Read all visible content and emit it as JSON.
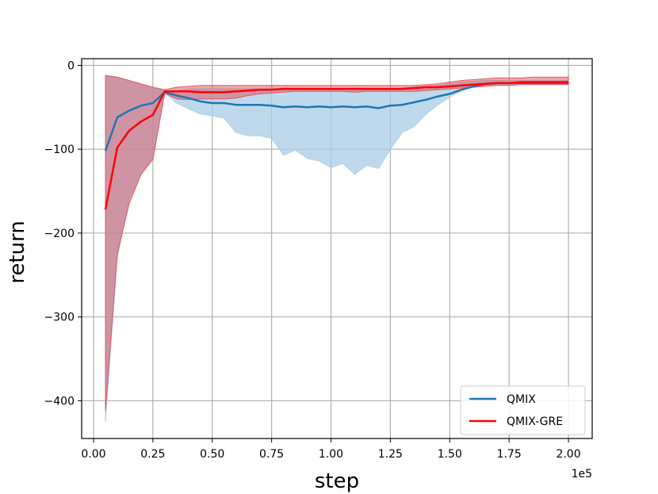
{
  "chart_data": {
    "type": "line",
    "xlabel": "step",
    "ylabel": "return",
    "x_offset_label": "1e5",
    "xlim": [
      -0.05,
      2.1
    ],
    "ylim": [
      -445,
      8
    ],
    "xticks": [
      0.0,
      0.25,
      0.5,
      0.75,
      1.0,
      1.25,
      1.5,
      1.75,
      2.0
    ],
    "xtick_labels": [
      "0.00",
      "0.25",
      "0.50",
      "0.75",
      "1.00",
      "1.25",
      "1.50",
      "1.75",
      "2.00"
    ],
    "yticks": [
      0,
      -100,
      -200,
      -300,
      -400
    ],
    "ytick_labels": [
      "0",
      "−100",
      "−200",
      "−300",
      "−400"
    ],
    "grid": true,
    "legend_position": "lower-right",
    "series": [
      {
        "name": "QMIX",
        "color": "#1f77b4",
        "band_color": "#a9cce5",
        "x": [
          0.05,
          0.1,
          0.15,
          0.2,
          0.25,
          0.3,
          0.35,
          0.4,
          0.45,
          0.5,
          0.55,
          0.6,
          0.65,
          0.7,
          0.75,
          0.8,
          0.85,
          0.9,
          0.95,
          1.0,
          1.05,
          1.1,
          1.15,
          1.2,
          1.25,
          1.3,
          1.35,
          1.4,
          1.45,
          1.5,
          1.55,
          1.6,
          1.65,
          1.7,
          1.75,
          1.8,
          1.85,
          1.9,
          1.95,
          2.0
        ],
        "mean": [
          -102,
          -62,
          -54,
          -48,
          -45,
          -32,
          -36,
          -39,
          -43,
          -45,
          -45,
          -47,
          -47,
          -47,
          -48,
          -50,
          -49,
          -50,
          -49,
          -50,
          -49,
          -50,
          -49,
          -51,
          -48,
          -47,
          -44,
          -41,
          -37,
          -34,
          -29,
          -25,
          -22,
          -21,
          -21,
          -21,
          -21,
          -21,
          -21,
          -21
        ],
        "upper": [
          -13,
          -14,
          -18,
          -22,
          -27,
          -30,
          -30,
          -28,
          -28,
          -28,
          -28,
          -28,
          -28,
          -28,
          -28,
          -28,
          -28,
          -28,
          -28,
          -28,
          -28,
          -28,
          -28,
          -28,
          -28,
          -27,
          -26,
          -25,
          -24,
          -22,
          -20,
          -19,
          -18,
          -18,
          -18,
          -18,
          -18,
          -18,
          -18,
          -18
        ],
        "lower": [
          -425,
          -230,
          -160,
          -130,
          -110,
          -33,
          -45,
          -52,
          -58,
          -60,
          -63,
          -80,
          -84,
          -84,
          -87,
          -107,
          -101,
          -111,
          -114,
          -122,
          -117,
          -130,
          -119,
          -123,
          -100,
          -80,
          -73,
          -58,
          -47,
          -38,
          -30,
          -26,
          -24,
          -23,
          -23,
          -23,
          -23,
          -23,
          -23,
          -23
        ]
      },
      {
        "name": "QMIX-GRE",
        "color": "#ff0000",
        "band_color": "#e0505a",
        "x": [
          0.05,
          0.1,
          0.15,
          0.2,
          0.25,
          0.3,
          0.35,
          0.4,
          0.45,
          0.5,
          0.55,
          0.6,
          0.65,
          0.7,
          0.75,
          0.8,
          0.85,
          0.9,
          0.95,
          1.0,
          1.05,
          1.1,
          1.15,
          1.2,
          1.25,
          1.3,
          1.35,
          1.4,
          1.45,
          1.5,
          1.55,
          1.6,
          1.65,
          1.7,
          1.75,
          1.8,
          1.85,
          1.9,
          1.95,
          2.0
        ],
        "mean": [
          -172,
          -98,
          -78,
          -67,
          -59,
          -31,
          -31,
          -31,
          -32,
          -32,
          -32,
          -31,
          -30,
          -29,
          -29,
          -28,
          -28,
          -28,
          -28,
          -28,
          -28,
          -28,
          -28,
          -28,
          -28,
          -28,
          -27,
          -26,
          -26,
          -25,
          -24,
          -23,
          -22,
          -21,
          -21,
          -20,
          -20,
          -20,
          -20,
          -20
        ],
        "upper": [
          -12,
          -14,
          -18,
          -22,
          -26,
          -29,
          -26,
          -25,
          -24,
          -24,
          -24,
          -24,
          -24,
          -24,
          -24,
          -24,
          -24,
          -24,
          -24,
          -24,
          -24,
          -24,
          -24,
          -24,
          -24,
          -24,
          -24,
          -23,
          -22,
          -20,
          -18,
          -17,
          -16,
          -15,
          -15,
          -15,
          -14,
          -14,
          -14,
          -14
        ],
        "lower": [
          -412,
          -225,
          -165,
          -130,
          -112,
          -33,
          -40,
          -41,
          -40,
          -40,
          -40,
          -39,
          -36,
          -34,
          -33,
          -32,
          -31,
          -31,
          -31,
          -31,
          -31,
          -32,
          -31,
          -31,
          -31,
          -31,
          -31,
          -30,
          -29,
          -28,
          -27,
          -26,
          -25,
          -24,
          -24,
          -23,
          -23,
          -23,
          -23,
          -23
        ]
      }
    ]
  }
}
